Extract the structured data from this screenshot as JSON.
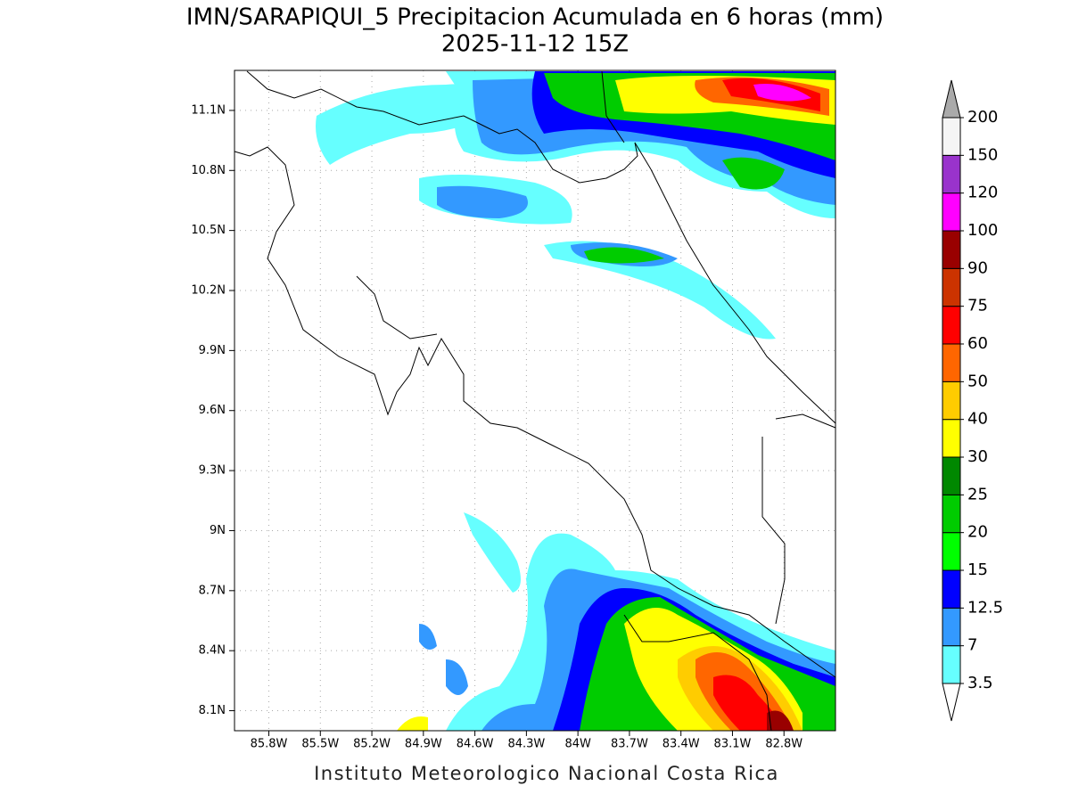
{
  "title": "IMN/SARAPIQUI_5 Precipitacion Acumulada en 6 horas (mm)",
  "subtitle": "2025-11-12 15Z",
  "footer": "Instituto Meteorologico Nacional Costa Rica",
  "map": {
    "xlim": [
      -86.0,
      -82.5
    ],
    "ylim": [
      8.0,
      11.3
    ],
    "grid": true,
    "xticks": [
      {
        "value": -85.8,
        "label": "85.8W"
      },
      {
        "value": -85.5,
        "label": "85.5W"
      },
      {
        "value": -85.2,
        "label": "85.2W"
      },
      {
        "value": -84.9,
        "label": "84.9W"
      },
      {
        "value": -84.6,
        "label": "84.6W"
      },
      {
        "value": -84.3,
        "label": "84.3W"
      },
      {
        "value": -84.0,
        "label": "84W"
      },
      {
        "value": -83.7,
        "label": "83.7W"
      },
      {
        "value": -83.4,
        "label": "83.4W"
      },
      {
        "value": -83.1,
        "label": "83.1W"
      },
      {
        "value": -82.8,
        "label": "82.8W"
      }
    ],
    "yticks": [
      {
        "value": 8.1,
        "label": "8.1N"
      },
      {
        "value": 8.4,
        "label": "8.4N"
      },
      {
        "value": 8.7,
        "label": "8.7N"
      },
      {
        "value": 9.0,
        "label": "9N"
      },
      {
        "value": 9.3,
        "label": "9.3N"
      },
      {
        "value": 9.6,
        "label": "9.6N"
      },
      {
        "value": 9.9,
        "label": "9.9N"
      },
      {
        "value": 10.2,
        "label": "10.2N"
      },
      {
        "value": 10.5,
        "label": "10.5N"
      },
      {
        "value": 10.8,
        "label": "10.8N"
      },
      {
        "value": 11.1,
        "label": "11.1N"
      }
    ]
  },
  "colorbar": {
    "levels": [
      3.5,
      7,
      12.5,
      15,
      20,
      25,
      30,
      40,
      50,
      60,
      75,
      90,
      100,
      120,
      150,
      200
    ],
    "colors": [
      "#66ffff",
      "#3399ff",
      "#0000ff",
      "#00ff00",
      "#00cc00",
      "#008800",
      "#ffff00",
      "#ffcc00",
      "#ff6600",
      "#ff0000",
      "#cc3300",
      "#990000",
      "#ff00ff",
      "#9933cc",
      "#f5f5f5"
    ],
    "under_color": "#ffffff",
    "over_color": "#aaaaaa"
  }
}
